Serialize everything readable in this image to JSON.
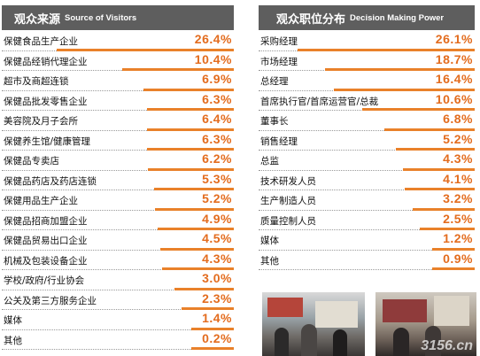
{
  "left_panel": {
    "title_cn": "观众来源",
    "title_en": "Source of Visitors",
    "rows": [
      {
        "label": "保健食品生产企业",
        "pct": "26.4%",
        "value": 26.4
      },
      {
        "label": "保健品经销代理企业",
        "pct": "10.4%",
        "value": 10.4
      },
      {
        "label": "超市及商超连锁",
        "pct": "6.9%",
        "value": 6.9
      },
      {
        "label": "保健品批发零售企业",
        "pct": "6.3%",
        "value": 6.3
      },
      {
        "label": "美容院及月子会所",
        "pct": "6.4%",
        "value": 6.4
      },
      {
        "label": "保健养生馆/健康管理",
        "pct": "6.3%",
        "value": 6.3
      },
      {
        "label": "保健品专卖店",
        "pct": "6.2%",
        "value": 6.2
      },
      {
        "label": "保健品药店及药店连锁",
        "pct": "5.3%",
        "value": 5.3
      },
      {
        "label": "保健用品生产企业",
        "pct": "5.2%",
        "value": 5.2
      },
      {
        "label": "保健品招商加盟企业",
        "pct": "4.9%",
        "value": 4.9
      },
      {
        "label": "保健品贸易出口企业",
        "pct": "4.5%",
        "value": 4.5
      },
      {
        "label": "机械及包装设备企业",
        "pct": "4.3%",
        "value": 4.3
      },
      {
        "label": "学校/政府/行业协会",
        "pct": "3.0%",
        "value": 3.0
      },
      {
        "label": "公关及第三方服务企业",
        "pct": "2.3%",
        "value": 2.3
      },
      {
        "label": "媒体",
        "pct": "1.4%",
        "value": 1.4
      },
      {
        "label": "其他",
        "pct": "0.2%",
        "value": 0.2
      }
    ]
  },
  "right_panel": {
    "title_cn": "观众职位分布",
    "title_en": "Decision Making Power",
    "rows": [
      {
        "label": "采购经理",
        "pct": "26.1%",
        "value": 26.1
      },
      {
        "label": "市场经理",
        "pct": "18.7%",
        "value": 18.7
      },
      {
        "label": "总经理",
        "pct": "16.4%",
        "value": 16.4
      },
      {
        "label": "首席执行官/首席运营官/总裁",
        "pct": "10.6%",
        "value": 10.6
      },
      {
        "label": "董事长",
        "pct": "6.8%",
        "value": 6.8
      },
      {
        "label": "销售经理",
        "pct": "5.2%",
        "value": 5.2
      },
      {
        "label": "总监",
        "pct": "4.3%",
        "value": 4.3
      },
      {
        "label": "技术研发人员",
        "pct": "4.1%",
        "value": 4.1
      },
      {
        "label": "生产制造人员",
        "pct": "3.2%",
        "value": 3.2
      },
      {
        "label": "质量控制人员",
        "pct": "2.5%",
        "value": 2.5
      },
      {
        "label": "媒体",
        "pct": "1.2%",
        "value": 1.2
      },
      {
        "label": "其他",
        "pct": "0.9%",
        "value": 0.9
      }
    ]
  },
  "photos": {
    "watermark": "3156.cn"
  },
  "colors": {
    "header_bg": "#5e5e5e",
    "accent": "#e36c1e",
    "bar": "#e9812a"
  }
}
